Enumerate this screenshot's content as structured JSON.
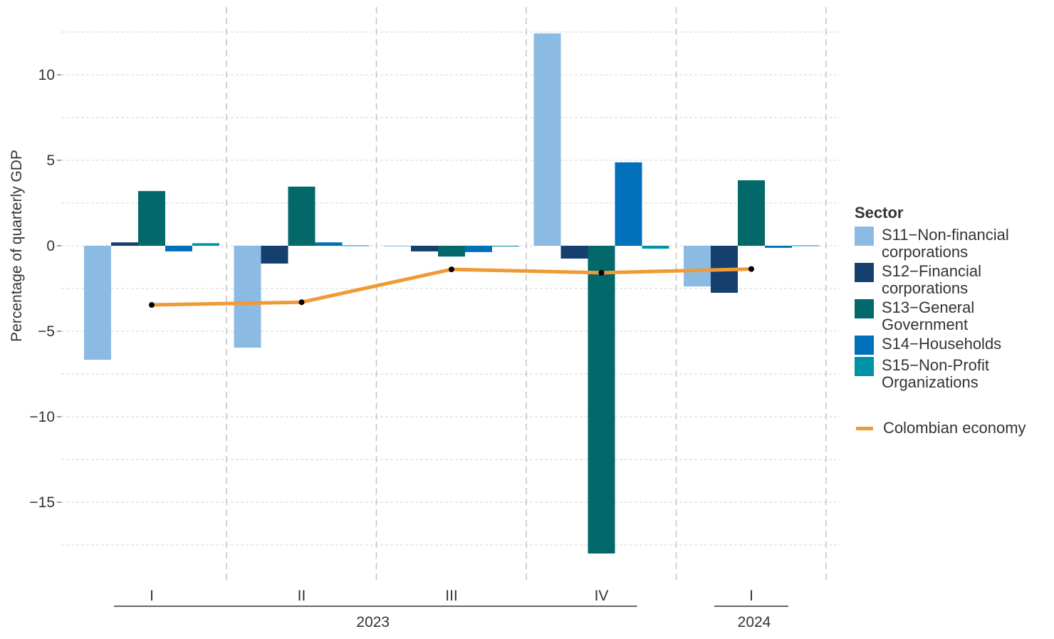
{
  "chart_data": {
    "type": "bar",
    "title": "",
    "ylabel": "Percentage of quarterly GDP",
    "xlabel": "",
    "ylim": [
      -19.5,
      13.5
    ],
    "yticks": [
      10,
      5,
      0,
      -5,
      -10,
      -15
    ],
    "ytick_labels": [
      "10",
      "5",
      "0",
      "−5",
      "−10",
      "−15"
    ],
    "categories": [
      "I",
      "II",
      "III",
      "IV",
      "I"
    ],
    "year_groups": [
      {
        "label": "2023",
        "span": [
          0,
          3
        ]
      },
      {
        "label": "2024",
        "span": [
          4,
          4
        ]
      }
    ],
    "legend_title": "Sector",
    "legend_position": "right",
    "series": [
      {
        "name": "S11−Non-financial corporations",
        "color": "#8BBBE3",
        "values": [
          -6.67,
          -5.96,
          0.0,
          12.42,
          -2.38
        ]
      },
      {
        "name": "S12−Financial corporations",
        "color": "#143F6E",
        "values": [
          0.2,
          -1.04,
          -0.33,
          -0.75,
          -2.75
        ]
      },
      {
        "name": "S13−General Government",
        "color": "#03686A",
        "values": [
          3.2,
          3.46,
          -0.63,
          -18.0,
          3.83
        ]
      },
      {
        "name": "S14−Households",
        "color": "#0070BA",
        "values": [
          -0.33,
          0.2,
          -0.37,
          4.88,
          -0.12
        ]
      },
      {
        "name": "S15−Non-Profit Organizations",
        "color": "#0093A7",
        "values": [
          0.15,
          0.02,
          -0.04,
          -0.17,
          0.02
        ]
      }
    ],
    "line": {
      "name": "Colombian economy",
      "color": "#F09A37",
      "values": [
        -3.46,
        -3.3,
        -1.38,
        -1.58,
        -1.36
      ]
    }
  }
}
